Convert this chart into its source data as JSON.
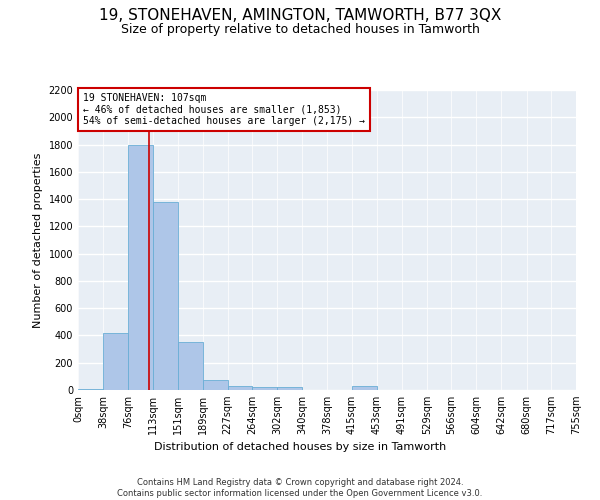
{
  "title": "19, STONEHAVEN, AMINGTON, TAMWORTH, B77 3QX",
  "subtitle": "Size of property relative to detached houses in Tamworth",
  "xlabel": "Distribution of detached houses by size in Tamworth",
  "ylabel": "Number of detached properties",
  "footer_line1": "Contains HM Land Registry data © Crown copyright and database right 2024.",
  "footer_line2": "Contains public sector information licensed under the Open Government Licence v3.0.",
  "annotation_line1": "19 STONEHAVEN: 107sqm",
  "annotation_line2": "← 46% of detached houses are smaller (1,853)",
  "annotation_line3": "54% of semi-detached houses are larger (2,175) →",
  "property_size": 107,
  "bin_edges": [
    0,
    38,
    76,
    113,
    151,
    189,
    227,
    264,
    302,
    340,
    378,
    415,
    453,
    491,
    529,
    566,
    604,
    642,
    680,
    717,
    755
  ],
  "bin_counts": [
    10,
    420,
    1800,
    1380,
    350,
    70,
    30,
    20,
    20,
    0,
    0,
    30,
    0,
    0,
    0,
    0,
    0,
    0,
    0,
    0
  ],
  "bar_color": "#aec6e8",
  "bar_edge_color": "#6aaed6",
  "vline_color": "#cc0000",
  "vline_x": 107,
  "annotation_box_color": "#cc0000",
  "ylim": [
    0,
    2200
  ],
  "yticks": [
    0,
    200,
    400,
    600,
    800,
    1000,
    1200,
    1400,
    1600,
    1800,
    2000,
    2200
  ],
  "background_color": "#e8eef5",
  "grid_color": "#ffffff",
  "title_fontsize": 11,
  "subtitle_fontsize": 9,
  "xlabel_fontsize": 8,
  "ylabel_fontsize": 8,
  "tick_fontsize": 7,
  "annotation_fontsize": 7,
  "footer_fontsize": 6
}
